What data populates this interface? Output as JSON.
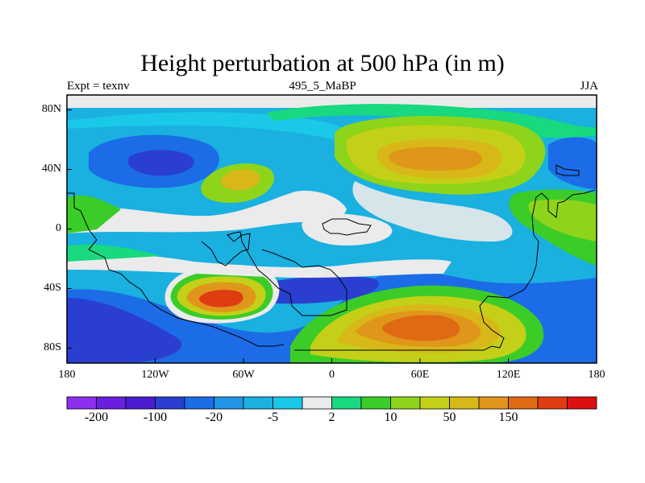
{
  "chart_data": {
    "type": "heatmap",
    "title": "Height perturbation at 500 hPa (in m)",
    "left_label": "Expt = texnv",
    "center_label": "495_5_MaBP",
    "right_label": "JJA",
    "x_range": [
      -180,
      180
    ],
    "y_range": [
      -90,
      90
    ],
    "x_ticks": [
      {
        "value": -180,
        "label": "180"
      },
      {
        "value": -120,
        "label": "120W"
      },
      {
        "value": -60,
        "label": "60W"
      },
      {
        "value": 0,
        "label": "0"
      },
      {
        "value": 60,
        "label": "60E"
      },
      {
        "value": 120,
        "label": "120E"
      },
      {
        "value": 180,
        "label": "180"
      }
    ],
    "y_ticks": [
      {
        "value": 80,
        "label": "80N"
      },
      {
        "value": 40,
        "label": "40N"
      },
      {
        "value": 0,
        "label": "0"
      },
      {
        "value": -40,
        "label": "40S"
      },
      {
        "value": -80,
        "label": "80S"
      }
    ],
    "colorbar": {
      "colors": [
        "#8e2ff0",
        "#6a1fe0",
        "#4a1ed0",
        "#2a3fd0",
        "#1b6ce6",
        "#2294e6",
        "#1ab0e0",
        "#1ac8e8",
        "#ebebeb",
        "#18d880",
        "#3ccc28",
        "#8ed41a",
        "#c4d018",
        "#d8b818",
        "#e0961a",
        "#e06a14",
        "#e03c12",
        "#dc1010"
      ],
      "labels": [
        {
          "index": 1,
          "text": "-200"
        },
        {
          "index": 3,
          "text": "-100"
        },
        {
          "index": 5,
          "text": "-20"
        },
        {
          "index": 7,
          "text": "-5"
        },
        {
          "index": 9,
          "text": "2"
        },
        {
          "index": 11,
          "text": "10"
        },
        {
          "index": 13,
          "text": "50"
        },
        {
          "index": 15,
          "text": "150"
        }
      ]
    },
    "anomaly_features": [
      {
        "lon": -125,
        "lat": 50,
        "value": -100,
        "color": "#2a3fd0"
      },
      {
        "lon": 60,
        "lat": 50,
        "value": 50,
        "color": "#e0961a"
      },
      {
        "lon": 65,
        "lat": -63,
        "value": 150,
        "color": "#e06a14"
      },
      {
        "lon": -73,
        "lat": -45,
        "value": 150,
        "color": "#e06a14"
      },
      {
        "lon": -55,
        "lat": 38,
        "value": 50,
        "color": "#d8b818"
      },
      {
        "lon": 10,
        "lat": 0,
        "value": 2,
        "color": "#ebebeb"
      },
      {
        "lon": -160,
        "lat": -65,
        "value": -100,
        "color": "#2a3fd0"
      },
      {
        "lon": 150,
        "lat": 40,
        "value": -20,
        "color": "#1b6ce6"
      }
    ]
  }
}
